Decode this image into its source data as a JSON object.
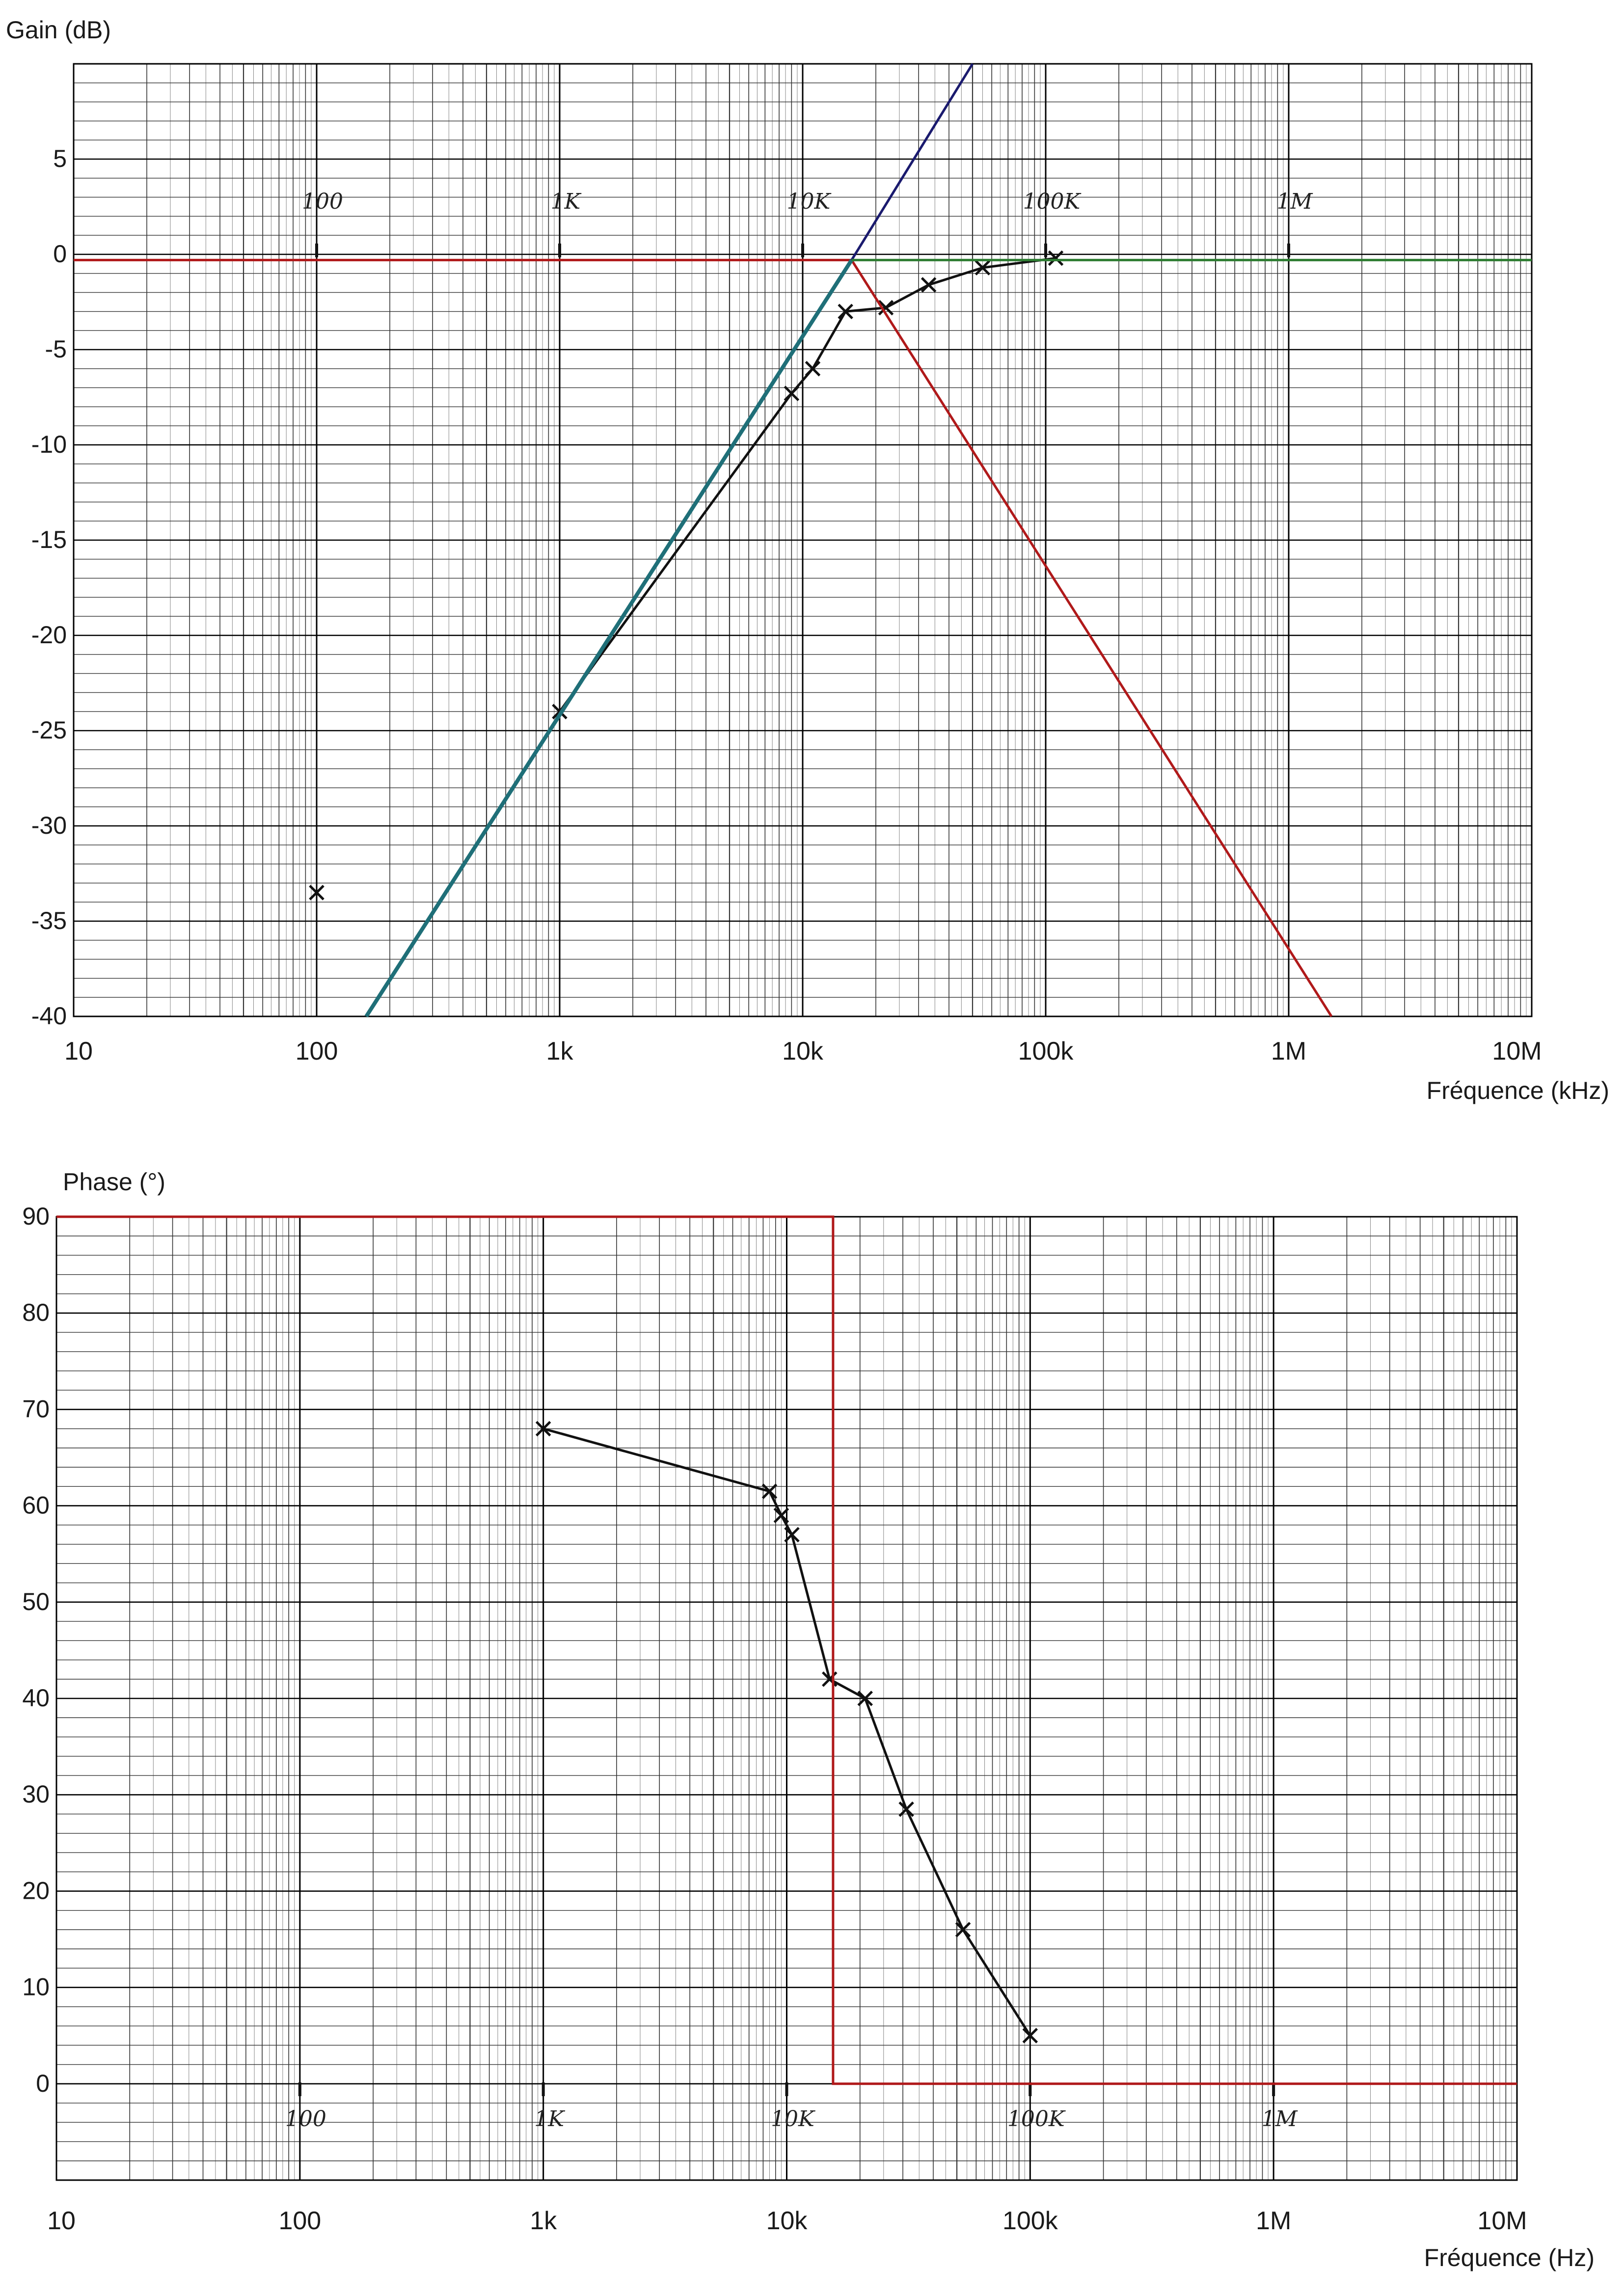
{
  "colors": {
    "grid_major": "#000000",
    "grid_minor": "#333333",
    "asymptote": "#b0191a",
    "slope_line_1": "#1f6f78",
    "slope_line_2": "#1a1a6e",
    "flat_line": "#2e7d32",
    "measured": "#111111"
  },
  "chart_data": [
    {
      "type": "line",
      "xscale": "log",
      "ylabel": "Gain (dB)",
      "xlabel": "Fréquence (kHz)",
      "xlim": [
        10,
        10000000
      ],
      "ylim": [
        -40,
        10
      ],
      "y_ticks": [
        5,
        0,
        -5,
        -10,
        -15,
        -20,
        -25,
        -30,
        -35,
        -40
      ],
      "x_ticks": [
        {
          "value": 10,
          "label": "10"
        },
        {
          "value": 100,
          "label": "100"
        },
        {
          "value": 1000,
          "label": "1k"
        },
        {
          "value": 10000,
          "label": "10k"
        },
        {
          "value": 100000,
          "label": "100k"
        },
        {
          "value": 1000000,
          "label": "1M"
        },
        {
          "value": 10000000,
          "label": "10M"
        }
      ],
      "handwritten_labels": [
        {
          "value": 100,
          "text": "100"
        },
        {
          "value": 1000,
          "text": "1K"
        },
        {
          "value": 10000,
          "text": "10K"
        },
        {
          "value": 100000,
          "text": "100K"
        },
        {
          "value": 1000000,
          "text": "1M"
        }
      ],
      "grid": true,
      "series": [
        {
          "role": "measured",
          "marker": "x",
          "x": [
            100,
            1000,
            9000,
            11000,
            15000,
            22000,
            33000,
            55000,
            110000
          ],
          "y": [
            -33.5,
            -24,
            -7.3,
            -6,
            -3,
            -2.8,
            -1.6,
            -0.7,
            -0.2
          ]
        },
        {
          "role": "asymptote-low",
          "x": [
            10,
            15900
          ],
          "y": [
            -0.3,
            -0.3
          ]
        },
        {
          "role": "asymptote-high-slope",
          "x": [
            15900,
            1500000
          ],
          "y": [
            -0.3,
            -40
          ]
        },
        {
          "role": "slope-line",
          "x": [
            160,
            15900
          ],
          "y": [
            -40,
            -0.3
          ]
        },
        {
          "role": "slope-line-ext",
          "x": [
            15900,
            50000
          ],
          "y": [
            -0.3,
            10
          ]
        },
        {
          "role": "flat-line",
          "x": [
            15900,
            10000000
          ],
          "y": [
            -0.3,
            -0.3
          ]
        }
      ]
    },
    {
      "type": "line",
      "xscale": "log",
      "ylabel": "Phase (°)",
      "xlabel": "Fréquence (Hz)",
      "xlim": [
        10,
        10000000
      ],
      "ylim": [
        -10,
        90
      ],
      "y_ticks": [
        90,
        80,
        70,
        60,
        50,
        40,
        30,
        20,
        10,
        0
      ],
      "x_ticks": [
        {
          "value": 10,
          "label": "10"
        },
        {
          "value": 100,
          "label": "100"
        },
        {
          "value": 1000,
          "label": "1k"
        },
        {
          "value": 10000,
          "label": "10k"
        },
        {
          "value": 100000,
          "label": "100k"
        },
        {
          "value": 1000000,
          "label": "1M"
        },
        {
          "value": 10000000,
          "label": "10M"
        }
      ],
      "handwritten_labels": [
        {
          "value": 100,
          "text": "100"
        },
        {
          "value": 1000,
          "text": "1K"
        },
        {
          "value": 10000,
          "text": "10K"
        },
        {
          "value": 100000,
          "text": "100K"
        },
        {
          "value": 1000000,
          "text": "1M"
        }
      ],
      "grid": true,
      "series": [
        {
          "role": "measured",
          "marker": "x",
          "x": [
            1000,
            8500,
            9500,
            10500,
            15000,
            21000,
            31000,
            53000,
            100000
          ],
          "y": [
            68,
            61.5,
            59,
            57,
            42,
            40,
            28.5,
            16,
            5
          ]
        },
        {
          "role": "asymptote",
          "x": [
            10,
            15500,
            15500,
            10000000
          ],
          "y": [
            90,
            90,
            0,
            0
          ]
        }
      ]
    }
  ]
}
